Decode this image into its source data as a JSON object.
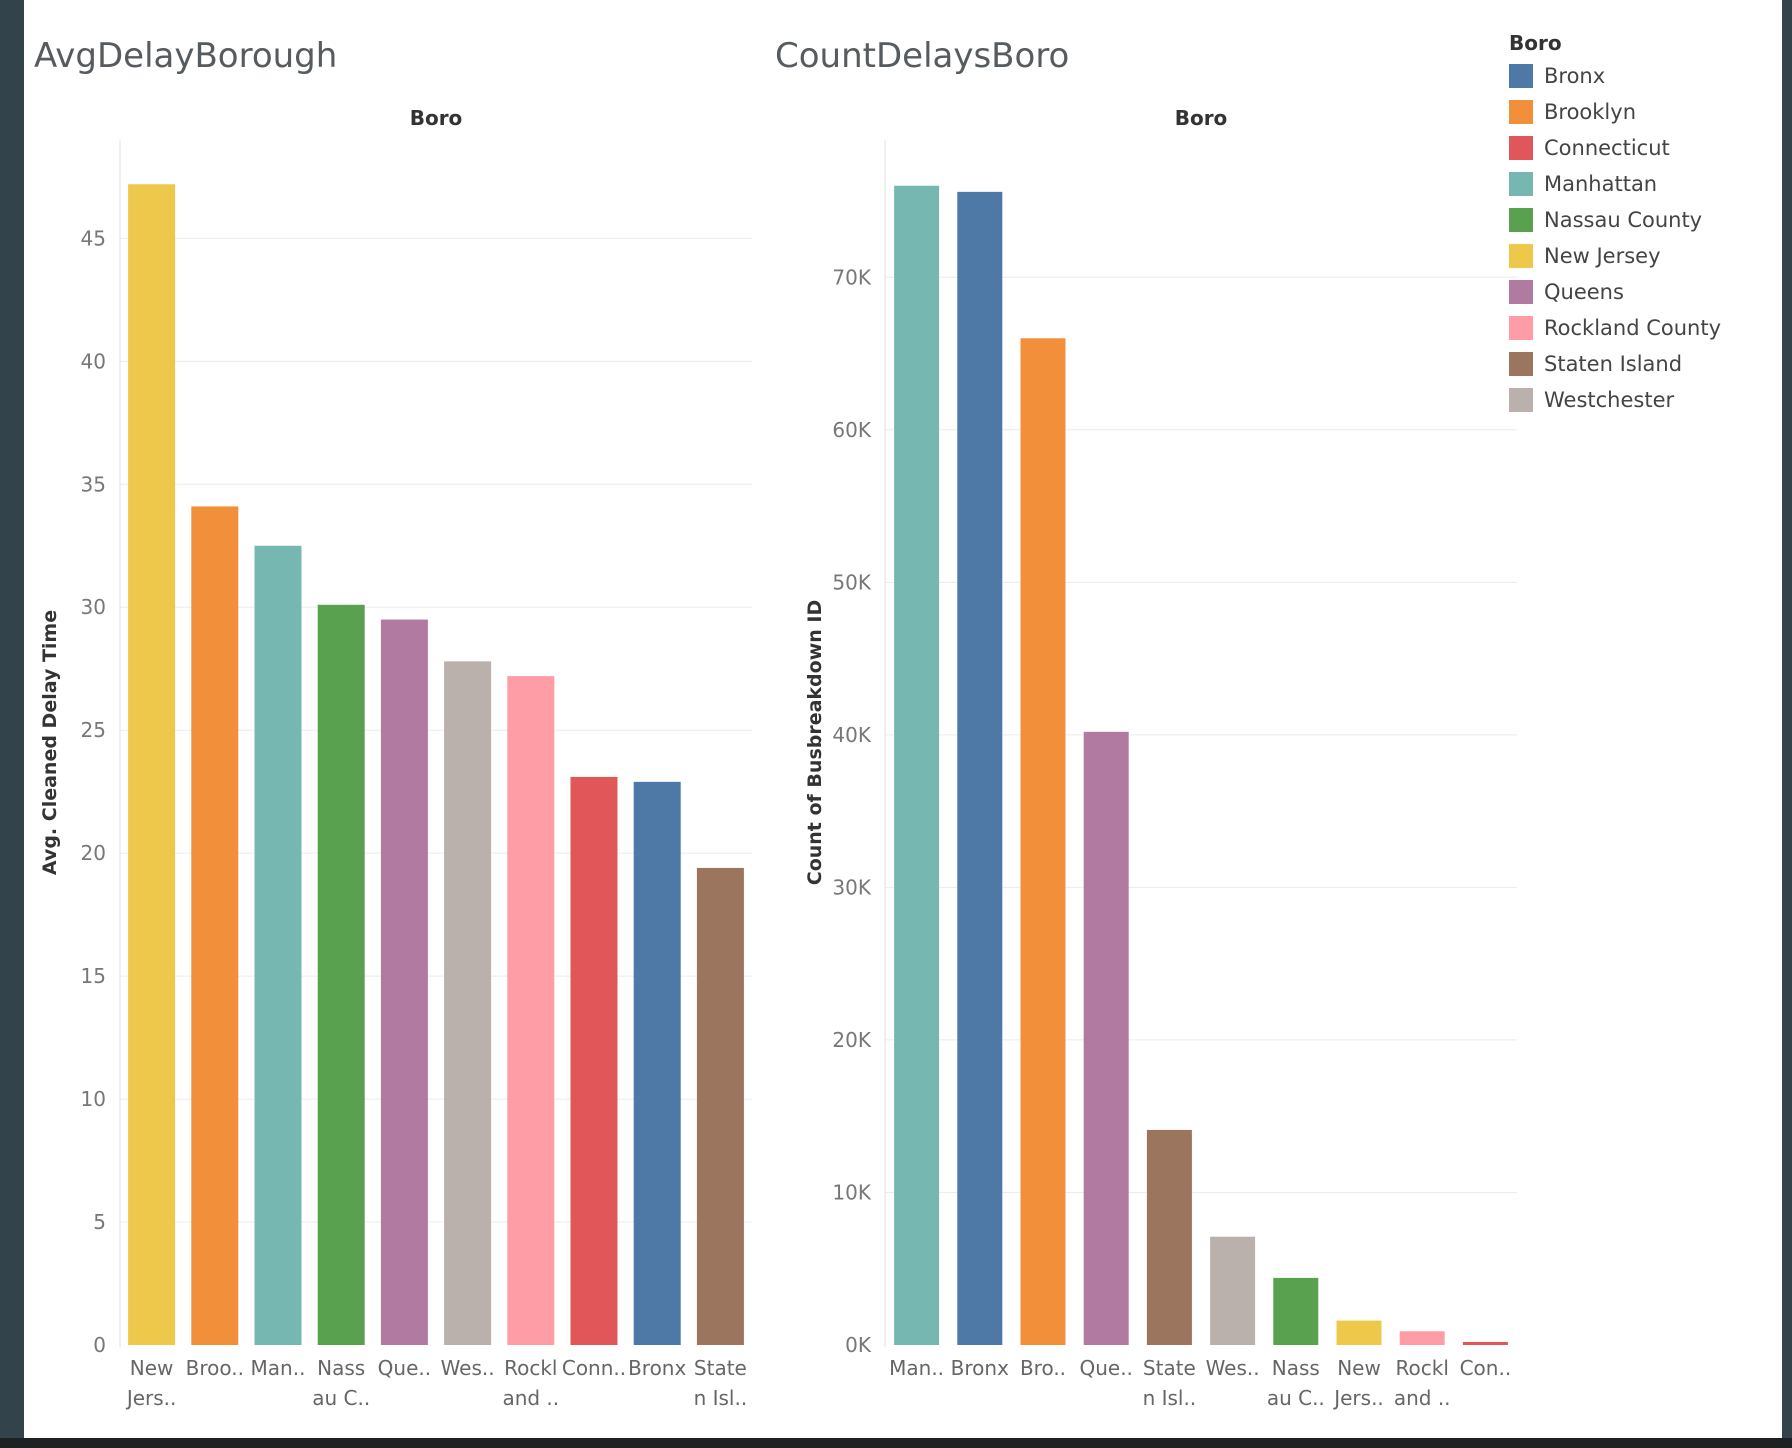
{
  "palette": {
    "Bronx": "#4e78a6",
    "Brooklyn": "#f28f3b",
    "Connecticut": "#e15659",
    "Manhattan": "#77b7b2",
    "Nassau County": "#59a14f",
    "New Jersey": "#edc84a",
    "Queens": "#b07aa1",
    "Rockland County": "#ff9da7",
    "Staten Island": "#9c755f",
    "Westchester": "#bab0ac"
  },
  "legend": {
    "title": "Boro",
    "items": [
      "Bronx",
      "Brooklyn",
      "Connecticut",
      "Manhattan",
      "Nassau County",
      "New Jersey",
      "Queens",
      "Rockland County",
      "Staten Island",
      "Westchester"
    ]
  },
  "chart_data": [
    {
      "type": "bar",
      "title": "AvgDelayBorough",
      "column_header": "Boro",
      "ylabel": "Avg. Cleaned Delay Time",
      "ylim": [
        0,
        49
      ],
      "yticks": [
        0,
        5,
        10,
        15,
        20,
        25,
        30,
        35,
        40,
        45
      ],
      "ytick_labels": [
        "0",
        "5",
        "10",
        "15",
        "20",
        "25",
        "30",
        "35",
        "40",
        "45"
      ],
      "grid": true,
      "categories": [
        "New Jersey",
        "Brooklyn",
        "Manhattan",
        "Nassau County",
        "Queens",
        "Westchester",
        "Rockland County",
        "Connecticut",
        "Bronx",
        "Staten Island"
      ],
      "tick_labels": [
        [
          "New",
          "Jers.."
        ],
        [
          "Broo.."
        ],
        [
          "Man.."
        ],
        [
          "Nass",
          "au C.."
        ],
        [
          "Que.."
        ],
        [
          "Wes.."
        ],
        [
          "Rockl",
          "and .."
        ],
        [
          "Conn.."
        ],
        [
          "Bronx"
        ],
        [
          "State",
          "n Isl.."
        ]
      ],
      "values": [
        47.2,
        34.1,
        32.5,
        30.1,
        29.5,
        27.8,
        27.2,
        23.1,
        22.9,
        19.4
      ]
    },
    {
      "type": "bar",
      "title": "CountDelaysBoro",
      "column_header": "Boro",
      "ylabel": "Count of Busbreakdown ID",
      "ylim": [
        0,
        79000
      ],
      "yticks": [
        0,
        10000,
        20000,
        30000,
        40000,
        50000,
        60000,
        70000
      ],
      "ytick_labels": [
        "0K",
        "10K",
        "20K",
        "30K",
        "40K",
        "50K",
        "60K",
        "70K"
      ],
      "grid": true,
      "categories": [
        "Manhattan",
        "Bronx",
        "Brooklyn",
        "Queens",
        "Staten Island",
        "Westchester",
        "Nassau County",
        "New Jersey",
        "Rockland County",
        "Connecticut"
      ],
      "tick_labels": [
        [
          "Man.."
        ],
        [
          "Bronx"
        ],
        [
          "Bro.."
        ],
        [
          "Que.."
        ],
        [
          "State",
          "n Isl.."
        ],
        [
          "Wes.."
        ],
        [
          "Nass",
          "au C.."
        ],
        [
          "New",
          "Jers.."
        ],
        [
          "Rockl",
          "and .."
        ],
        [
          "Con.."
        ]
      ],
      "values": [
        76000,
        75600,
        66000,
        40200,
        14100,
        7100,
        4400,
        1600,
        900,
        200
      ]
    }
  ]
}
